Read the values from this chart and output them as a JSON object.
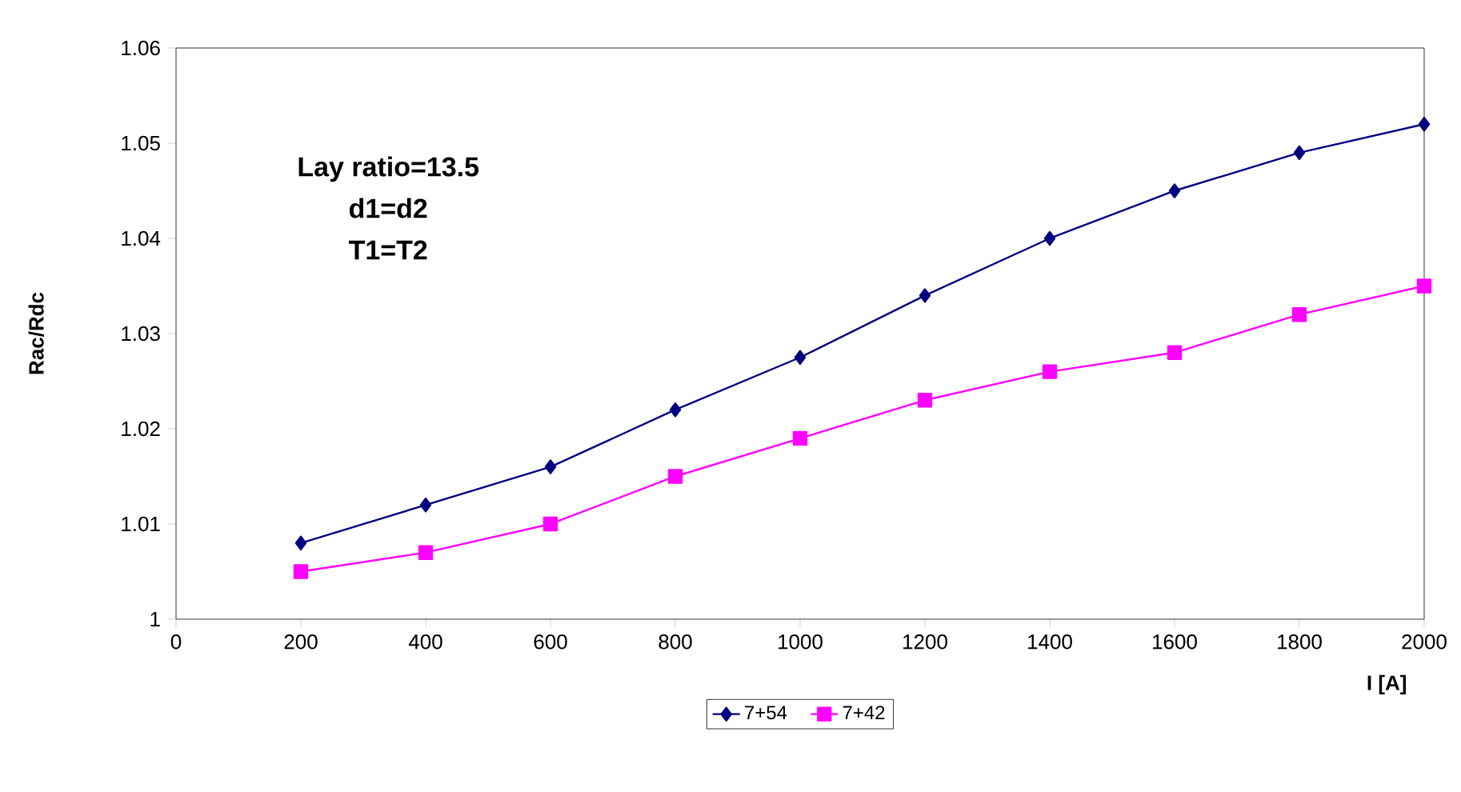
{
  "chart_data": {
    "type": "line",
    "xlabel": "I [A]",
    "ylabel": "Rac/Rdc",
    "annotations": [
      "Lay ratio=13.5",
      "d1=d2",
      "T1=T2"
    ],
    "x": [
      200,
      400,
      600,
      800,
      1000,
      1200,
      1400,
      1600,
      1800,
      2000
    ],
    "series": [
      {
        "name": "7+54",
        "color": "#000080",
        "marker": "diamond",
        "values": [
          1.008,
          1.012,
          1.016,
          1.022,
          1.0275,
          1.034,
          1.04,
          1.045,
          1.049,
          1.052
        ]
      },
      {
        "name": "7+42",
        "color": "#ff00ff",
        "marker": "square",
        "values": [
          1.005,
          1.007,
          1.01,
          1.015,
          1.019,
          1.023,
          1.026,
          1.028,
          1.032,
          1.035
        ]
      }
    ],
    "xlim": [
      0,
      2000
    ],
    "xticks": [
      0,
      200,
      400,
      600,
      800,
      1000,
      1200,
      1400,
      1600,
      1800,
      2000
    ],
    "ylim": [
      1,
      1.06
    ],
    "yticks": [
      1,
      1.01,
      1.02,
      1.03,
      1.04,
      1.05,
      1.06
    ],
    "grid": false,
    "legend": "bottom",
    "line_style": "solid"
  }
}
